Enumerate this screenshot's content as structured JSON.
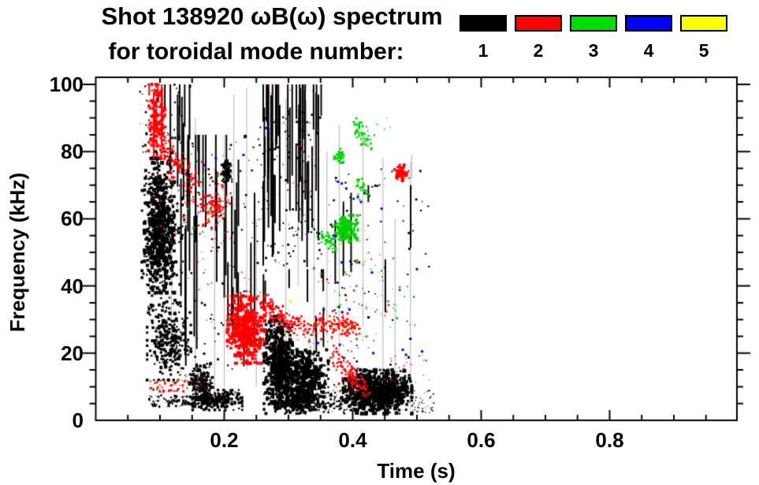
{
  "title": {
    "line1": "Shot 138920 ωB(ω) spectrum",
    "line2": "for toroidal mode number:"
  },
  "legend": {
    "items": [
      {
        "label": "1",
        "color": "#000000"
      },
      {
        "label": "2",
        "color": "#ff0000"
      },
      {
        "label": "3",
        "color": "#00dd00"
      },
      {
        "label": "4",
        "color": "#0000ff"
      },
      {
        "label": "5",
        "color": "#ffff00"
      }
    ]
  },
  "chart_data": {
    "type": "scatter",
    "title": "Shot 138920 ωB(ω) spectrum for toroidal mode number: 1 2 3 4 5",
    "xlabel": "Time (s)",
    "ylabel": "Frequency (kHz)",
    "xlim": [
      0,
      1.0
    ],
    "ylim": [
      0,
      102
    ],
    "grid": false,
    "legend_position": "top-right",
    "x_major_ticks": [
      0.2,
      0.4,
      0.6,
      0.8
    ],
    "x_tick_labels": [
      "0.2",
      "0.4",
      "0.6",
      "0.8"
    ],
    "x_minor_step": 0.05,
    "y_major_ticks": [
      0,
      20,
      40,
      60,
      80,
      100
    ],
    "y_tick_labels": [
      "0",
      "20",
      "40",
      "60",
      "80",
      "100"
    ],
    "y_minor_step": 5,
    "modes": [
      {
        "n": 1,
        "color": "#000000"
      },
      {
        "n": 2,
        "color": "#ff0000"
      },
      {
        "n": 3,
        "color": "#00cf00"
      },
      {
        "n": 4,
        "color": "#0000ff"
      },
      {
        "n": 5,
        "color": "#ffe800"
      }
    ],
    "clusters": [
      {
        "mode": 1,
        "type": "blob",
        "t": [
          0.076,
          0.122
        ],
        "f": [
          38,
          78
        ],
        "n": 560,
        "size": [
          2,
          5
        ]
      },
      {
        "mode": 1,
        "type": "blob",
        "t": [
          0.072,
          0.135
        ],
        "f": [
          28,
          80
        ],
        "n": 240,
        "size": [
          2,
          4
        ]
      },
      {
        "mode": 1,
        "type": "blob",
        "t": [
          0.08,
          0.148
        ],
        "f": [
          12,
          35
        ],
        "n": 280,
        "size": [
          2,
          4
        ]
      },
      {
        "mode": 1,
        "type": "scatter",
        "t": [
          0.065,
          0.135
        ],
        "f": [
          78,
          100
        ],
        "n": 55,
        "size": [
          1,
          3
        ]
      },
      {
        "mode": 1,
        "type": "vstreaks",
        "t": [
          0.09,
          0.16
        ],
        "f": [
          60,
          100
        ],
        "n": 10,
        "len": [
          6,
          28
        ],
        "w": 2
      },
      {
        "mode": 1,
        "type": "vstreaks",
        "t": [
          0.128,
          0.258
        ],
        "f": [
          15,
          85
        ],
        "n": 34,
        "len": [
          8,
          45
        ],
        "w": 2
      },
      {
        "mode": 1,
        "type": "scatter",
        "t": [
          0.13,
          0.26
        ],
        "f": [
          15,
          85
        ],
        "n": 110,
        "size": [
          1,
          3
        ]
      },
      {
        "mode": 1,
        "type": "blob",
        "t": [
          0.196,
          0.212
        ],
        "f": [
          71,
          78
        ],
        "n": 55,
        "size": [
          2,
          4
        ]
      },
      {
        "mode": 1,
        "type": "vstreaks",
        "t": [
          0.258,
          0.352
        ],
        "f": [
          45,
          100
        ],
        "n": 42,
        "len": [
          10,
          48
        ],
        "w": 2
      },
      {
        "mode": 1,
        "type": "scatter",
        "t": [
          0.256,
          0.35
        ],
        "f": [
          46,
          92
        ],
        "n": 130,
        "size": [
          1,
          3
        ]
      },
      {
        "mode": 1,
        "type": "vstreaks",
        "t": [
          0.26,
          0.36
        ],
        "f": [
          20,
          45
        ],
        "n": 10,
        "len": [
          5,
          16
        ],
        "w": 2
      },
      {
        "mode": 1,
        "type": "blob",
        "t": [
          0.262,
          0.306
        ],
        "f": [
          5,
          31
        ],
        "n": 520,
        "size": [
          2,
          5
        ]
      },
      {
        "mode": 1,
        "type": "blob",
        "t": [
          0.284,
          0.362
        ],
        "f": [
          4,
          21
        ],
        "n": 470,
        "size": [
          2,
          5
        ]
      },
      {
        "mode": 1,
        "type": "blob",
        "t": [
          0.262,
          0.366
        ],
        "f": [
          2,
          9
        ],
        "n": 260,
        "size": [
          2,
          4
        ]
      },
      {
        "mode": 1,
        "type": "scatter",
        "t": [
          0.355,
          0.392
        ],
        "f": [
          2,
          12
        ],
        "n": 70,
        "size": [
          1,
          3
        ]
      },
      {
        "mode": 1,
        "type": "blob",
        "t": [
          0.385,
          0.492
        ],
        "f": [
          2,
          15
        ],
        "n": 760,
        "size": [
          2,
          5
        ]
      },
      {
        "mode": 1,
        "type": "scatter",
        "t": [
          0.49,
          0.527
        ],
        "f": [
          2,
          9
        ],
        "n": 40,
        "size": [
          1,
          2
        ]
      },
      {
        "mode": 1,
        "type": "scatter",
        "t": [
          0.082,
          0.145
        ],
        "f": [
          4,
          7.5
        ],
        "n": 75,
        "size": [
          1,
          3
        ]
      },
      {
        "mode": 1,
        "type": "blob",
        "t": [
          0.146,
          0.182
        ],
        "f": [
          3,
          17
        ],
        "n": 170,
        "size": [
          2,
          4
        ]
      },
      {
        "mode": 1,
        "type": "blob",
        "t": [
          0.15,
          0.228
        ],
        "f": [
          3,
          9
        ],
        "n": 200,
        "size": [
          2,
          4
        ]
      },
      {
        "mode": 1,
        "type": "scatter",
        "t": [
          0.36,
          0.52
        ],
        "f": [
          16,
          75
        ],
        "n": 85,
        "size": [
          1,
          3
        ]
      },
      {
        "mode": 1,
        "type": "vstreaks",
        "t": [
          0.37,
          0.5
        ],
        "f": [
          30,
          70
        ],
        "n": 8,
        "len": [
          8,
          24
        ],
        "w": 2
      },
      {
        "mode": 2,
        "type": "blob",
        "t": [
          0.082,
          0.108
        ],
        "f": [
          78,
          100
        ],
        "n": 170,
        "size": [
          2,
          4
        ]
      },
      {
        "mode": 2,
        "type": "vstreaks",
        "t": [
          0.083,
          0.105
        ],
        "f": [
          75,
          100
        ],
        "n": 6,
        "len": [
          8,
          22
        ],
        "w": 2
      },
      {
        "mode": 2,
        "type": "path",
        "pts": [
          [
            0.096,
            86
          ],
          [
            0.115,
            79
          ],
          [
            0.135,
            74
          ],
          [
            0.156,
            70
          ]
        ],
        "jit": [
          0.006,
          2.5
        ],
        "n": 120,
        "size": [
          2,
          3
        ]
      },
      {
        "mode": 2,
        "type": "scatter",
        "t": [
          0.1,
          0.21
        ],
        "f": [
          55,
          76
        ],
        "n": 60,
        "size": [
          1,
          3
        ]
      },
      {
        "mode": 2,
        "type": "blob",
        "t": [
          0.16,
          0.205
        ],
        "f": [
          57,
          70
        ],
        "n": 85,
        "size": [
          2,
          3
        ]
      },
      {
        "mode": 2,
        "type": "blob",
        "t": [
          0.205,
          0.263
        ],
        "f": [
          17,
          37
        ],
        "n": 500,
        "size": [
          2,
          5
        ]
      },
      {
        "mode": 2,
        "type": "path",
        "pts": [
          [
            0.264,
            36
          ],
          [
            0.28,
            31.5
          ],
          [
            0.3,
            29
          ],
          [
            0.33,
            27.8
          ],
          [
            0.36,
            28.3
          ],
          [
            0.385,
            27.6
          ],
          [
            0.405,
            28.6
          ]
        ],
        "jit": [
          0.004,
          1.4
        ],
        "n": 260,
        "size": [
          2,
          3
        ]
      },
      {
        "mode": 2,
        "type": "path",
        "pts": [
          [
            0.372,
            19
          ],
          [
            0.39,
            15
          ],
          [
            0.405,
            12
          ],
          [
            0.424,
            8.5
          ]
        ],
        "jit": [
          0.005,
          1.6
        ],
        "n": 110,
        "size": [
          2,
          3
        ]
      },
      {
        "mode": 2,
        "type": "blob",
        "t": [
          0.465,
          0.488
        ],
        "f": [
          71,
          76
        ],
        "n": 70,
        "size": [
          2,
          4
        ]
      },
      {
        "mode": 2,
        "type": "scatter",
        "t": [
          0.3,
          0.44
        ],
        "f": [
          20,
          26
        ],
        "n": 22,
        "size": [
          1,
          2
        ]
      },
      {
        "mode": 2,
        "type": "scatter",
        "t": [
          0.335,
          0.46
        ],
        "f": [
          28,
          50
        ],
        "n": 30,
        "size": [
          1,
          3
        ]
      },
      {
        "mode": 2,
        "type": "scatter",
        "t": [
          0.26,
          0.34
        ],
        "f": [
          70,
          100
        ],
        "n": 16,
        "size": [
          1,
          2
        ]
      },
      {
        "mode": 2,
        "type": "scatter",
        "t": [
          0.085,
          0.14
        ],
        "f": [
          8.5,
          12
        ],
        "n": 45,
        "size": [
          1,
          3
        ]
      },
      {
        "mode": 2,
        "type": "scatter",
        "t": [
          0.135,
          0.175
        ],
        "f": [
          9,
          14
        ],
        "n": 16,
        "size": [
          1,
          2
        ]
      },
      {
        "mode": 2,
        "type": "scatter",
        "t": [
          0.14,
          0.26
        ],
        "f": [
          38,
          55
        ],
        "n": 22,
        "size": [
          1,
          2
        ]
      },
      {
        "mode": 2,
        "type": "scatter",
        "t": [
          0.44,
          0.52
        ],
        "f": [
          10,
          20
        ],
        "n": 18,
        "size": [
          1,
          2
        ]
      },
      {
        "mode": 3,
        "type": "blob",
        "t": [
          0.372,
          0.408
        ],
        "f": [
          53,
          61
        ],
        "n": 180,
        "size": [
          2,
          4
        ]
      },
      {
        "mode": 3,
        "type": "path",
        "pts": [
          [
            0.352,
            55
          ],
          [
            0.373,
            51.5
          ]
        ],
        "jit": [
          0.004,
          1.2
        ],
        "n": 40,
        "size": [
          2,
          3
        ]
      },
      {
        "mode": 3,
        "type": "path",
        "pts": [
          [
            0.405,
            89
          ],
          [
            0.418,
            84
          ],
          [
            0.429,
            82
          ]
        ],
        "jit": [
          0.003,
          1.5
        ],
        "n": 45,
        "size": [
          2,
          3
        ]
      },
      {
        "mode": 3,
        "type": "blob",
        "t": [
          0.368,
          0.39
        ],
        "f": [
          76,
          81
        ],
        "n": 42,
        "size": [
          2,
          3
        ]
      },
      {
        "mode": 3,
        "type": "path",
        "pts": [
          [
            0.408,
            72
          ],
          [
            0.419,
            67.5
          ]
        ],
        "jit": [
          0.003,
          1.2
        ],
        "n": 26,
        "size": [
          2,
          3
        ]
      },
      {
        "mode": 3,
        "type": "scatter",
        "t": [
          0.125,
          0.2
        ],
        "f": [
          55,
          80
        ],
        "n": 22,
        "size": [
          1,
          3
        ]
      },
      {
        "mode": 3,
        "type": "scatter",
        "t": [
          0.27,
          0.33
        ],
        "f": [
          45,
          70
        ],
        "n": 8,
        "size": [
          1,
          2
        ]
      },
      {
        "mode": 3,
        "type": "scatter",
        "t": [
          0.33,
          0.47
        ],
        "f": [
          18,
          50
        ],
        "n": 38,
        "size": [
          1,
          3
        ]
      },
      {
        "mode": 3,
        "type": "scatter",
        "t": [
          0.42,
          0.52
        ],
        "f": [
          25,
          47
        ],
        "n": 16,
        "size": [
          1,
          3
        ]
      },
      {
        "mode": 3,
        "type": "scatter",
        "t": [
          0.085,
          0.155
        ],
        "f": [
          8,
          16
        ],
        "n": 9,
        "size": [
          1,
          2
        ]
      },
      {
        "mode": 3,
        "type": "scatter",
        "t": [
          0.4,
          0.46
        ],
        "f": [
          84,
          91
        ],
        "n": 9,
        "size": [
          1,
          2
        ]
      }
    ],
    "dots": [
      {
        "mode": 4,
        "size": 3,
        "pts": [
          [
            0.265,
            87
          ],
          [
            0.168,
            76
          ],
          [
            0.187,
            78
          ],
          [
            0.23,
            79
          ],
          [
            0.377,
            71
          ],
          [
            0.383,
            70.5
          ],
          [
            0.39,
            69
          ],
          [
            0.408,
            66.5
          ],
          [
            0.413,
            65
          ],
          [
            0.355,
            33
          ],
          [
            0.395,
            33
          ],
          [
            0.346,
            23
          ],
          [
            0.38,
            22.5
          ],
          [
            0.432,
            20
          ],
          [
            0.478,
            21
          ],
          [
            0.483,
            19.5
          ],
          [
            0.508,
            20.5
          ],
          [
            0.398,
            46.5
          ],
          [
            0.41,
            47
          ],
          [
            0.383,
            47
          ],
          [
            0.37,
            55
          ],
          [
            0.445,
            63
          ],
          [
            0.43,
            44
          ],
          [
            0.5,
            45
          ]
        ]
      },
      {
        "mode": 5,
        "size": 3,
        "pts": [
          [
            0.382,
            52.5
          ],
          [
            0.303,
            35.5
          ]
        ]
      }
    ],
    "hairlines": {
      "color": "#b0b0b0",
      "lines": [
        [
          0.118,
          20,
          80
        ],
        [
          0.155,
          4,
          90
        ],
        [
          0.185,
          8,
          75
        ],
        [
          0.2,
          10,
          85
        ],
        [
          0.215,
          30,
          97
        ],
        [
          0.235,
          15,
          99
        ],
        [
          0.25,
          10,
          60
        ],
        [
          0.296,
          10,
          96
        ],
        [
          0.315,
          40,
          90
        ],
        [
          0.34,
          12,
          97
        ],
        [
          0.36,
          25,
          80
        ],
        [
          0.379,
          20,
          88
        ],
        [
          0.416,
          28,
          85
        ],
        [
          0.447,
          5,
          78
        ],
        [
          0.466,
          10,
          60
        ],
        [
          0.49,
          3,
          77
        ],
        [
          0.492,
          72,
          79
        ]
      ]
    }
  }
}
